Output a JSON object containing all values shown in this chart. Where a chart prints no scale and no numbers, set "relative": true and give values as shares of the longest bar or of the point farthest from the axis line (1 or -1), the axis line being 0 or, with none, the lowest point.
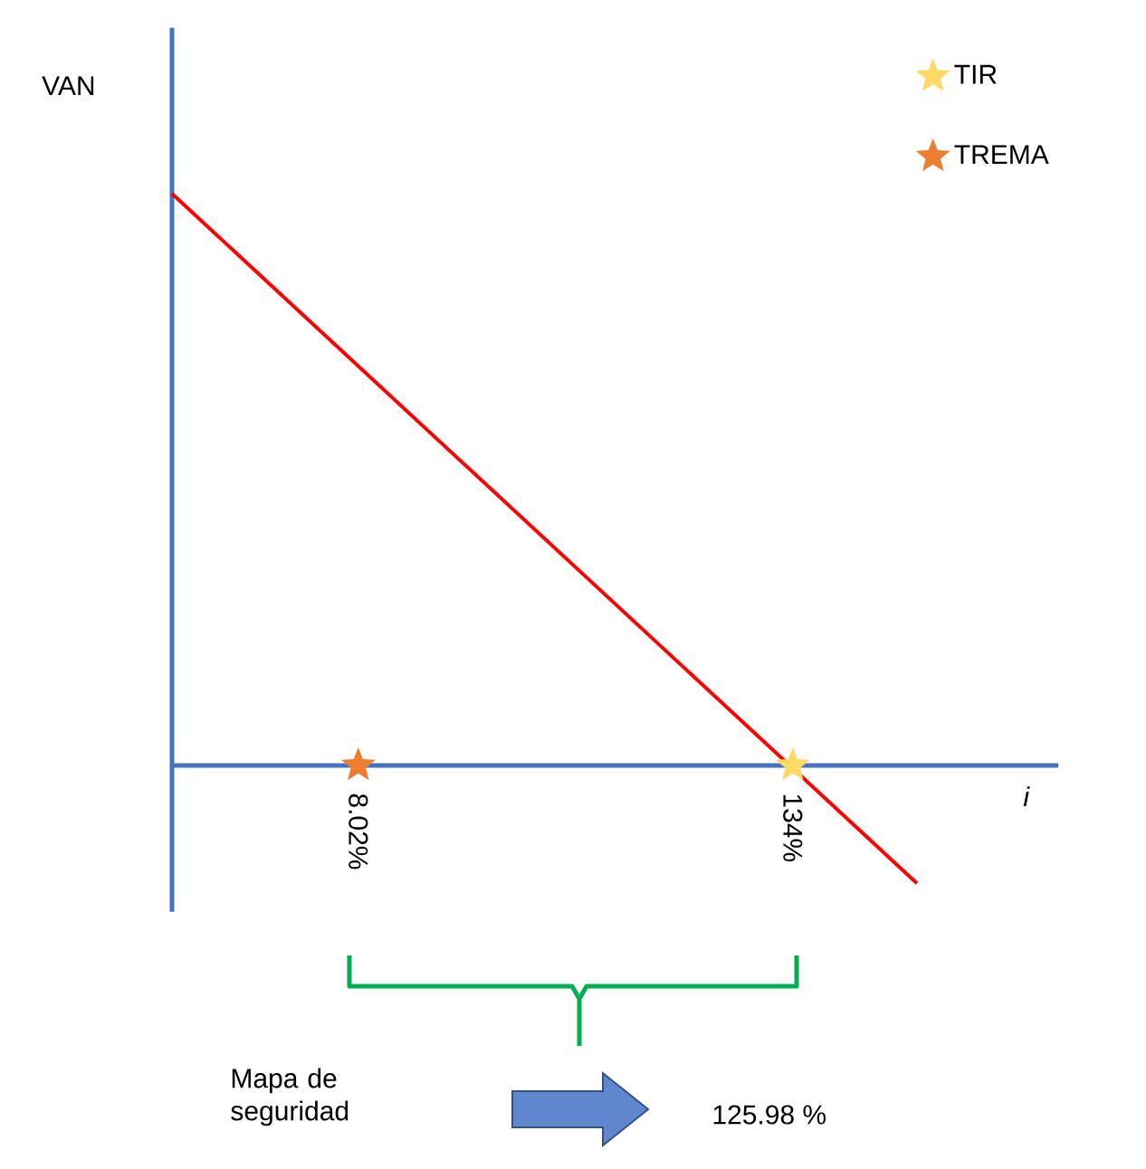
{
  "chart_data": {
    "type": "line",
    "relative": true,
    "xlabel": "i",
    "ylabel": "VAN",
    "xlim": [
      -46,
      211
    ],
    "xticks": [
      {
        "value": 8.02,
        "label": "8.02%"
      },
      {
        "value": 134,
        "label": "134%"
      }
    ],
    "legend": "top right",
    "tick_labels": "x",
    "annotations": [
      "Mapa de seguridad",
      "125.98 %"
    ],
    "series": [
      {
        "color": "#ff0000",
        "x": [
          -46,
          170
        ],
        "values": [
          1,
          -0.206
        ]
      },
      {
        "name": "TIR",
        "type": "scatter",
        "marker": "star",
        "color": "#ffd966",
        "x": [
          134
        ],
        "values": [
          0
        ]
      },
      {
        "name": "TREMA",
        "type": "scatter",
        "marker": "star",
        "color": "#ed7d31",
        "x": [
          8.02
        ],
        "values": [
          0
        ]
      }
    ]
  }
}
